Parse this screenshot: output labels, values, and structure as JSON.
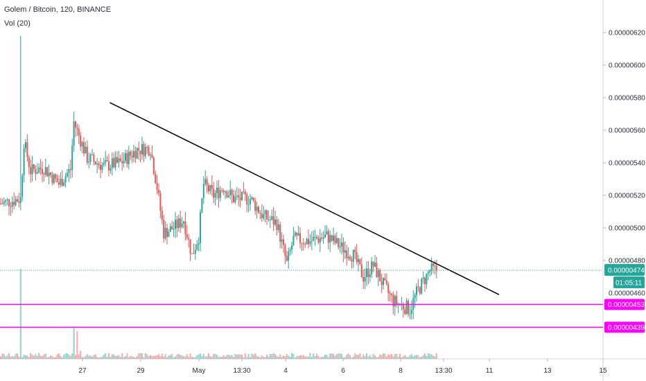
{
  "legend": {
    "symbol": "Golem / Bitcoin, 120, BINANCE",
    "volume": "Vol (20)"
  },
  "colors": {
    "up": "#26a69a",
    "down": "#ef5350",
    "trendline": "#000000",
    "support": "#ff00ff",
    "current_price": "#26a69a",
    "axis_text": "#2a2e39"
  },
  "chart_data": {
    "type": "candlestick",
    "x_ticks": [
      "27",
      "29",
      "May",
      "13:30",
      "4",
      "6",
      "8",
      "13:30",
      "11",
      "13",
      "15"
    ],
    "y_ticks": [
      "0.00000620",
      "0.00000600",
      "0.00000580",
      "0.00000560",
      "0.00000540",
      "0.00000520",
      "0.00000500",
      "0.00000480"
    ],
    "ylim": [
      4.25e-06,
      6.4e-06
    ],
    "price_path": [
      {
        "t": 0,
        "p": 5.15e-06
      },
      {
        "t": 12,
        "p": 5.18e-06
      },
      {
        "t": 14,
        "p": 5.53e-06
      },
      {
        "t": 18,
        "p": 5.35e-06
      },
      {
        "t": 26,
        "p": 5.37e-06
      },
      {
        "t": 35,
        "p": 5.27e-06
      },
      {
        "t": 42,
        "p": 5.36e-06
      },
      {
        "t": 44,
        "p": 5.65e-06
      },
      {
        "t": 52,
        "p": 5.43e-06
      },
      {
        "t": 62,
        "p": 5.38e-06
      },
      {
        "t": 72,
        "p": 5.4e-06
      },
      {
        "t": 82,
        "p": 5.48e-06
      },
      {
        "t": 90,
        "p": 5.49e-06
      },
      {
        "t": 94,
        "p": 5.25e-06
      },
      {
        "t": 98,
        "p": 4.97e-06
      },
      {
        "t": 104,
        "p": 5e-06
      },
      {
        "t": 110,
        "p": 5.05e-06
      },
      {
        "t": 115,
        "p": 4.83e-06
      },
      {
        "t": 119,
        "p": 4.95e-06
      },
      {
        "t": 122,
        "p": 5.27e-06
      },
      {
        "t": 128,
        "p": 5.2e-06
      },
      {
        "t": 134,
        "p": 5.25e-06
      },
      {
        "t": 140,
        "p": 5.18e-06
      },
      {
        "t": 150,
        "p": 5.18e-06
      },
      {
        "t": 158,
        "p": 5.07e-06
      },
      {
        "t": 166,
        "p": 5.03e-06
      },
      {
        "t": 172,
        "p": 4.78e-06
      },
      {
        "t": 176,
        "p": 4.93e-06
      },
      {
        "t": 186,
        "p": 4.92e-06
      },
      {
        "t": 196,
        "p": 4.95e-06
      },
      {
        "t": 205,
        "p": 4.88e-06
      },
      {
        "t": 212,
        "p": 4.83e-06
      },
      {
        "t": 218,
        "p": 4.7e-06
      },
      {
        "t": 224,
        "p": 4.77e-06
      },
      {
        "t": 230,
        "p": 4.65e-06
      },
      {
        "t": 236,
        "p": 4.55e-06
      },
      {
        "t": 246,
        "p": 4.5e-06
      },
      {
        "t": 250,
        "p": 4.6e-06
      },
      {
        "t": 254,
        "p": 4.67e-06
      },
      {
        "t": 258,
        "p": 4.74e-06
      },
      {
        "t": 262,
        "p": 4.74e-06
      }
    ],
    "candles": 263,
    "volume_spikes": [
      {
        "t": 12,
        "v": 1.0
      },
      {
        "t": 44,
        "v": 0.36
      },
      {
        "t": 46,
        "v": 0.31
      },
      {
        "t": 48,
        "v": 0.09
      },
      {
        "t": 120,
        "v": 0.06
      }
    ],
    "trendline": {
      "from": {
        "t": 66,
        "p": 5.77e-06
      },
      "to": {
        "t": 300,
        "p": 4.59e-06
      }
    },
    "horizontal_lines": [
      {
        "price": 4.53e-06,
        "label": "0.00000453"
      },
      {
        "price": 4.39e-06,
        "label": "0.00000439"
      }
    ],
    "current_price": {
      "price": 4.74e-06,
      "label": "0.00000474",
      "countdown": "01:05:11"
    }
  },
  "axis_partial_labels": {
    "below_price": "0.00000460"
  }
}
